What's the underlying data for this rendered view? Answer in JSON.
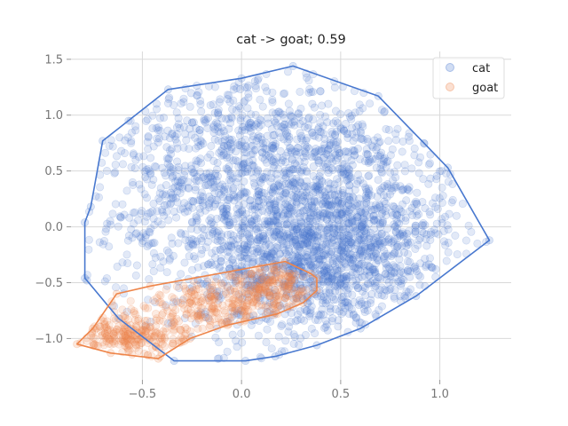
{
  "chart_data": {
    "type": "scatter",
    "title": "cat -> goat; 0.59",
    "xlabel": "",
    "ylabel": "",
    "xlim": [
      -0.86,
      1.36
    ],
    "ylim": [
      -1.37,
      1.57
    ],
    "xticks": [
      -0.5,
      0.0,
      0.5,
      1.0
    ],
    "xtick_labels": [
      "−0.5",
      "0.0",
      "0.5",
      "1.0"
    ],
    "yticks": [
      -1.0,
      -0.5,
      0.0,
      0.5,
      1.0,
      1.5
    ],
    "ytick_labels": [
      "−1.0",
      "−0.5",
      "0.0",
      "0.5",
      "1.0",
      "1.5"
    ],
    "grid": true,
    "legend_position": "top-right",
    "series": [
      {
        "name": "cat",
        "color": "#4878cf",
        "hull": [
          [
            0.26,
            1.44
          ],
          [
            0.69,
            1.17
          ],
          [
            0.92,
            0.75
          ],
          [
            1.04,
            0.53
          ],
          [
            1.25,
            -0.12
          ],
          [
            0.88,
            -0.62
          ],
          [
            0.6,
            -0.91
          ],
          [
            0.38,
            -1.06
          ],
          [
            0.17,
            -1.16
          ],
          [
            0.02,
            -1.2
          ],
          [
            -0.34,
            -1.2
          ],
          [
            -0.62,
            -0.82
          ],
          [
            -0.78,
            -0.48
          ],
          [
            -0.79,
            -0.46
          ],
          [
            -0.79,
            0.04
          ],
          [
            -0.76,
            0.18
          ],
          [
            -0.7,
            0.77
          ],
          [
            -0.37,
            1.23
          ],
          [
            0.0,
            1.33
          ]
        ],
        "clusters": [
          {
            "cx": 0.25,
            "cy": 0.1,
            "sx": 0.45,
            "sy": 0.55,
            "n": 1400
          },
          {
            "cx": 0.45,
            "cy": -0.25,
            "sx": 0.3,
            "sy": 0.35,
            "n": 900
          },
          {
            "cx": 0.0,
            "cy": 0.7,
            "sx": 0.45,
            "sy": 0.35,
            "n": 500
          }
        ]
      },
      {
        "name": "goat",
        "color": "#ee854a",
        "hull": [
          [
            -0.83,
            -1.05
          ],
          [
            -0.75,
            -0.91
          ],
          [
            -0.63,
            -0.6
          ],
          [
            -0.46,
            -0.53
          ],
          [
            0.22,
            -0.31
          ],
          [
            0.35,
            -0.42
          ],
          [
            0.38,
            -0.46
          ],
          [
            0.38,
            -0.57
          ],
          [
            0.31,
            -0.68
          ],
          [
            0.18,
            -0.78
          ],
          [
            -0.07,
            -0.88
          ],
          [
            -0.26,
            -1.0
          ],
          [
            -0.42,
            -1.18
          ],
          [
            -0.66,
            -1.13
          ]
        ],
        "clusters": [
          {
            "cx": -0.1,
            "cy": -0.72,
            "sx": 0.22,
            "sy": 0.14,
            "n": 260
          },
          {
            "cx": -0.55,
            "cy": -0.98,
            "sx": 0.14,
            "sy": 0.1,
            "n": 220
          },
          {
            "cx": 0.18,
            "cy": -0.52,
            "sx": 0.12,
            "sy": 0.1,
            "n": 140
          }
        ]
      }
    ]
  }
}
